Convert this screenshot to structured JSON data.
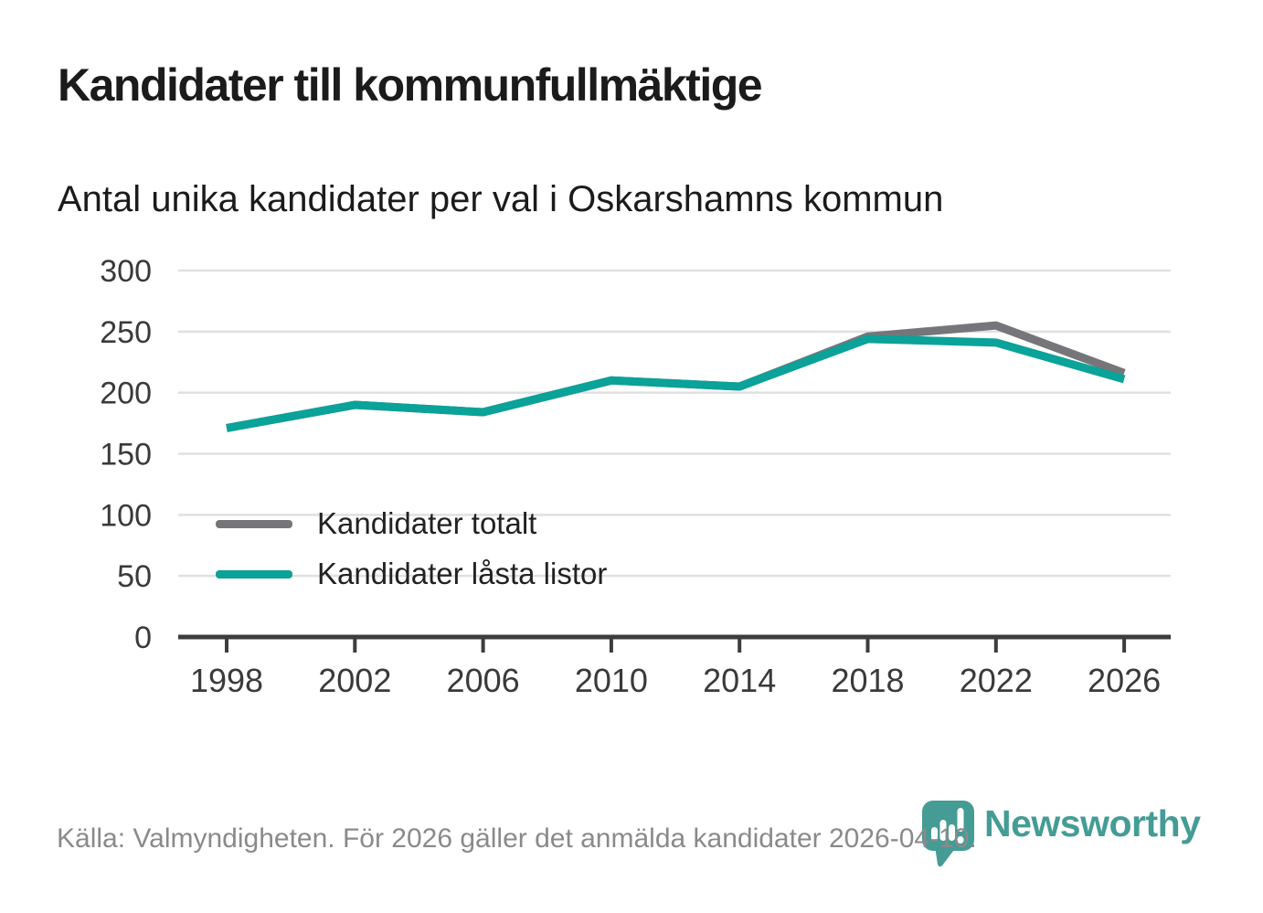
{
  "header": {
    "title": "Kandidater till kommunfullmäktige",
    "subtitle": "Antal unika kandidater per val i Oskarshamns kommun"
  },
  "chart_data": {
    "type": "line",
    "title": "Kandidater till kommunfullmäktige",
    "subtitle": "Antal unika kandidater per val i Oskarshamns kommun",
    "categories": [
      "1998",
      "2002",
      "2006",
      "2010",
      "2014",
      "2018",
      "2022",
      "2026"
    ],
    "series": [
      {
        "name": "Kandidater totalt",
        "color": "#76767a",
        "values": [
          171,
          190,
          184,
          210,
          205,
          246,
          255,
          216
        ]
      },
      {
        "name": "Kandidater låsta listor",
        "color": "#0aa299",
        "values": [
          171,
          190,
          184,
          210,
          205,
          244,
          241,
          211
        ]
      }
    ],
    "xlabel": "",
    "ylabel": "",
    "ylim": [
      0,
      300
    ],
    "ytick_step": 50,
    "grid": true,
    "legend_position": "inside-bottom-left"
  },
  "footer": {
    "source_text": "Källa: Valmyndigheten. För 2026 gäller det anmälda kandidater 2026-04-10.",
    "logo_text": "Newsworthy"
  },
  "colors": {
    "accent_teal": "#0aa299",
    "line_gray": "#76767a",
    "logo_teal": "#449c95",
    "grid": "#e0e0e0",
    "axis": "#3d3d3d",
    "tick_label": "#3a3a3a",
    "text_dark": "#1b1b1b",
    "muted_text": "#8a8a8a"
  }
}
